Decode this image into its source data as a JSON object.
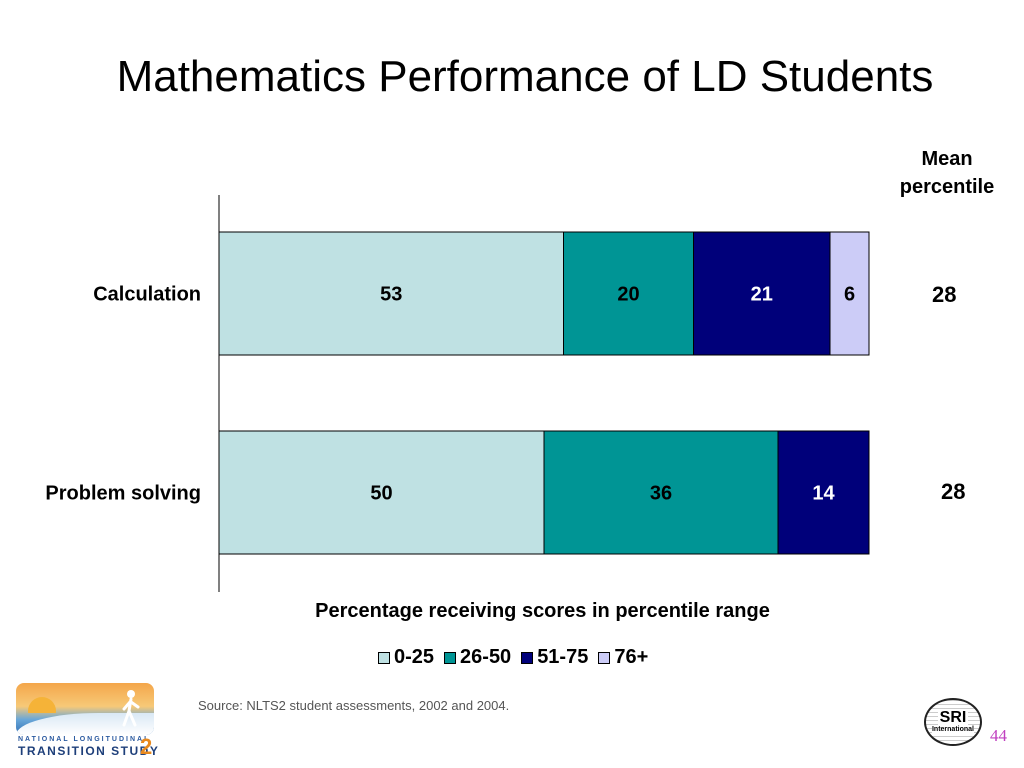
{
  "title": "Mathematics Performance of LD Students",
  "mean_header": [
    "Mean",
    "percentile"
  ],
  "chart_data": {
    "type": "bar",
    "orientation": "horizontal",
    "stacked": true,
    "title": "Mathematics Performance of LD Students",
    "xlabel": "Percentage receiving scores in percentile range",
    "ylabel": "",
    "xlim": [
      0,
      100
    ],
    "categories": [
      "Calculation",
      "Problem solving"
    ],
    "series": [
      {
        "name": "0-25",
        "color": "#bfe1e3",
        "label_color": "#000000",
        "values": [
          53,
          50
        ]
      },
      {
        "name": "26-50",
        "color": "#009595",
        "label_color": "#000000",
        "values": [
          20,
          36
        ]
      },
      {
        "name": "51-75",
        "color": "#00007a",
        "label_color": "#ffffff",
        "values": [
          21,
          14
        ]
      },
      {
        "name": "76+",
        "color": "#ccccf7",
        "label_color": "#000000",
        "values": [
          6,
          0
        ]
      }
    ],
    "mean_percentile": [
      28,
      28
    ],
    "legend_position": "bottom",
    "grid": false
  },
  "source": "Source: NLTS2 student assessments, 2002 and 2004.",
  "page_number": "44",
  "logo": {
    "line1": "NATIONAL LONGITUDINAL",
    "line2": "TRANSITION STUDY",
    "number": "2"
  },
  "sri_logo": {
    "main": "SRI",
    "sub": "International"
  }
}
